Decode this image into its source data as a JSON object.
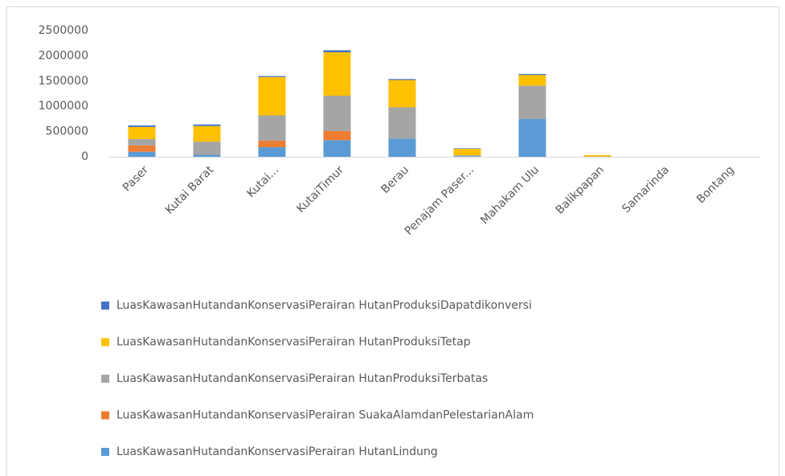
{
  "chart_data": {
    "type": "stacked_bar",
    "categories": [
      "Paser",
      "Kutai Barat",
      "Kutai...",
      "KutaiTimur",
      "Berau",
      "Penajam Paser...",
      "Mahakam Ulu",
      "Balikpapan",
      "Samarinda",
      "Bontang"
    ],
    "series": [
      {
        "name": "LuasKawasanHutandanKonservasiPerairan HutanLindung",
        "color": "#5b9bd5",
        "values": [
          100000,
          40000,
          190000,
          330000,
          360000,
          10000,
          750000,
          5000,
          0,
          0
        ]
      },
      {
        "name": "LuasKawasanHutandanKonservasiPerairan SuakaAlamdanPelestarianAlam",
        "color": "#ed7d31",
        "values": [
          125000,
          0,
          130000,
          180000,
          0,
          0,
          0,
          0,
          0,
          0
        ]
      },
      {
        "name": "LuasKawasanHutandanKonservasiPerairan HutanProduksiTerbatas",
        "color": "#a5a5a5",
        "values": [
          125000,
          260000,
          500000,
          700000,
          620000,
          20000,
          660000,
          0,
          0,
          0
        ]
      },
      {
        "name": "LuasKawasanHutandanKonservasiPerairan HutanProduksiTetap",
        "color": "#ffc000",
        "values": [
          240000,
          310000,
          760000,
          860000,
          540000,
          130000,
          210000,
          30000,
          0,
          0
        ]
      },
      {
        "name": "LuasKawasanHutandanKonservasiPerairan HutanProduksiDapatdikonversi",
        "color": "#4472c4",
        "values": [
          30000,
          30000,
          20000,
          40000,
          20000,
          10000,
          20000,
          0,
          0,
          0
        ]
      }
    ],
    "ylim": [
      0,
      2500000
    ],
    "yticks": [
      0,
      500000,
      1000000,
      1500000,
      2000000,
      2500000
    ],
    "grid": false,
    "legend": "bottom"
  }
}
